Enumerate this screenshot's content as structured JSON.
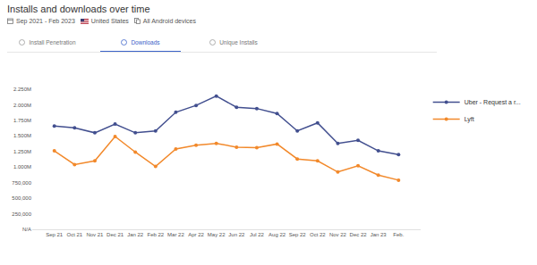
{
  "header": {
    "filters": [
      "Sep 2021 - Feb 2023",
      "United States",
      "All Android devices"
    ],
    "tabs": [
      "Install Penetration",
      "Downloads",
      "Unique Installs"
    ],
    "active_tab": "Downloads"
  },
  "chart_data": {
    "type": "line",
    "title": "Installs and downloads over time",
    "categories": [
      "Sep 21",
      "Oct 21",
      "Nov 21",
      "Dec 21",
      "Jan 22",
      "Feb 22",
      "Mar 22",
      "Apr 22",
      "May 22",
      "Jun 22",
      "Jul 22",
      "Aug 22",
      "Sep 22",
      "Oct 22",
      "Nov 22",
      "Dec 22",
      "Jan 23",
      "Feb."
    ],
    "series": [
      {
        "name": "Uber - Request a r...",
        "color": "#424f8f",
        "marker": "circle",
        "values": [
          1660000,
          1630000,
          1550000,
          1690000,
          1550000,
          1580000,
          1880000,
          1990000,
          2140000,
          1960000,
          1940000,
          1860000,
          1580000,
          1710000,
          1380000,
          1430000,
          1260000,
          1200000
        ]
      },
      {
        "name": "Lyft",
        "color": "#f2892b",
        "marker": "circle",
        "values": [
          1260000,
          1040000,
          1100000,
          1490000,
          1240000,
          1010000,
          1290000,
          1350000,
          1380000,
          1320000,
          1310000,
          1370000,
          1130000,
          1100000,
          920000,
          1020000,
          870000,
          790000
        ]
      }
    ],
    "ylim": [
      0,
      2250000
    ],
    "yticks": [
      {
        "value": 0,
        "label": "N/A"
      },
      {
        "value": 250000,
        "label": "250,000"
      },
      {
        "value": 500000,
        "label": "500,000"
      },
      {
        "value": 750000,
        "label": "750,000"
      },
      {
        "value": 1000000,
        "label": "1.000M"
      },
      {
        "value": 1250000,
        "label": "1.250M"
      },
      {
        "value": 1500000,
        "label": "1.500M"
      },
      {
        "value": 1750000,
        "label": "1.750M"
      },
      {
        "value": 2000000,
        "label": "2.000M"
      },
      {
        "value": 2250000,
        "label": "2.250M"
      }
    ],
    "grid": false,
    "legend": "right"
  }
}
